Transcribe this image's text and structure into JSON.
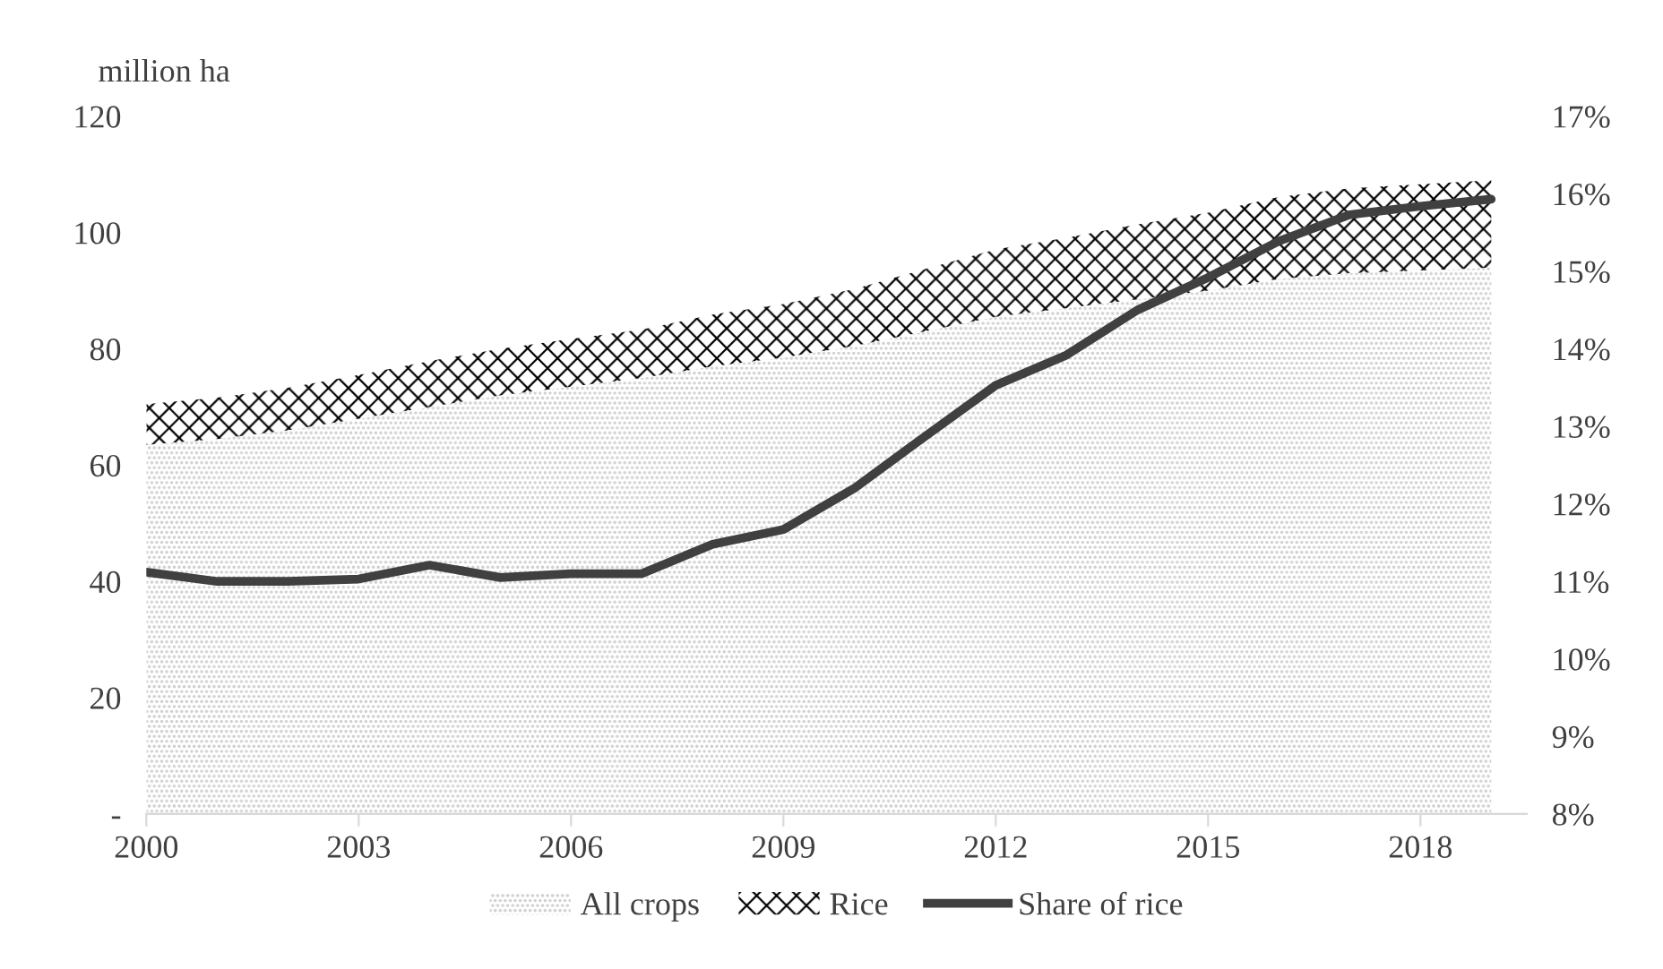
{
  "chart_data": {
    "type": "area",
    "stacked": true,
    "ylabel": "million ha",
    "x": [
      2000,
      2001,
      2002,
      2003,
      2004,
      2005,
      2006,
      2007,
      2008,
      2009,
      2010,
      2011,
      2012,
      2013,
      2014,
      2015,
      2016,
      2017,
      2018,
      2019
    ],
    "series": [
      {
        "name": "All crops",
        "color": "#c8c8c8",
        "values": [
          63.5,
          64.5,
          66,
          68,
          70,
          72,
          73.5,
          75,
          77,
          78.5,
          80.5,
          83,
          85.5,
          87,
          88.5,
          90,
          92,
          93,
          93.5,
          94
        ]
      },
      {
        "name": "Rice",
        "color": "#000000",
        "values": [
          7.0,
          7.1,
          7.3,
          7.5,
          7.9,
          8.0,
          8.2,
          8.3,
          8.9,
          9.2,
          9.8,
          10.7,
          11.6,
          12.1,
          12.9,
          13.4,
          14.1,
          14.6,
          14.8,
          15.0
        ]
      },
      {
        "name": "Share of rice",
        "type": "line",
        "axis": "y2",
        "color": "#404040",
        "values": [
          11.12,
          11.0,
          11.0,
          11.03,
          11.21,
          11.05,
          11.1,
          11.1,
          11.48,
          11.67,
          12.2,
          12.87,
          13.53,
          13.92,
          14.5,
          14.92,
          15.39,
          15.73,
          15.84,
          15.93
        ]
      }
    ],
    "xlim": [
      2000,
      2019.5
    ],
    "xticks": [
      2000,
      2003,
      2006,
      2009,
      2012,
      2015,
      2018
    ],
    "ylim": [
      0,
      120
    ],
    "yticks": [
      {
        "value": 0,
        "label": "-"
      },
      20,
      40,
      60,
      80,
      100,
      120
    ],
    "y2lim": [
      8,
      17
    ],
    "y2ticks": [
      {
        "value": 8,
        "label": "8%"
      },
      {
        "value": 9,
        "label": "9%"
      },
      {
        "value": 10,
        "label": "10%"
      },
      {
        "value": 11,
        "label": "11%"
      },
      {
        "value": 12,
        "label": "12%"
      },
      {
        "value": 13,
        "label": "13%"
      },
      {
        "value": 14,
        "label": "14%"
      },
      {
        "value": 15,
        "label": "15%"
      },
      {
        "value": 16,
        "label": "16%"
      },
      {
        "value": 17,
        "label": "17%"
      }
    ],
    "grid": false,
    "legend": "bottom",
    "line_style": "solid",
    "marker": "none"
  }
}
